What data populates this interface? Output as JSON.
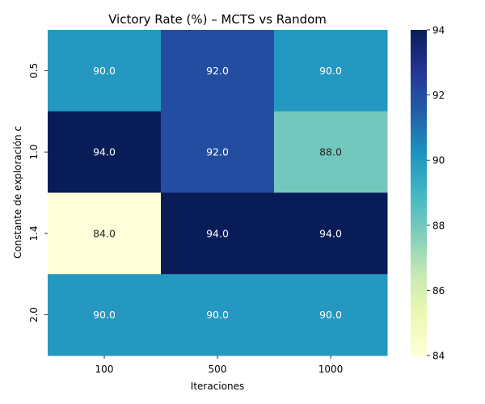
{
  "chart_data": {
    "type": "heatmap",
    "title": "Victory Rate (%) – MCTS vs Random",
    "xlabel": "Iteraciones",
    "ylabel": "Constante de exploración c",
    "x_categories": [
      "100",
      "500",
      "1000"
    ],
    "y_categories": [
      "0.5",
      "1.0",
      "1.4",
      "2.0"
    ],
    "values": [
      [
        90.0,
        92.0,
        90.0
      ],
      [
        94.0,
        92.0,
        88.0
      ],
      [
        84.0,
        94.0,
        94.0
      ],
      [
        90.0,
        90.0,
        90.0
      ]
    ],
    "cell_labels": [
      [
        "90.0",
        "92.0",
        "90.0"
      ],
      [
        "94.0",
        "92.0",
        "88.0"
      ],
      [
        "84.0",
        "94.0",
        "94.0"
      ],
      [
        "90.0",
        "90.0",
        "90.0"
      ]
    ],
    "colorbar": {
      "min": 84,
      "max": 94,
      "ticks": [
        "84",
        "86",
        "88",
        "90",
        "92",
        "94"
      ],
      "colormap": "YlGnBu"
    }
  }
}
